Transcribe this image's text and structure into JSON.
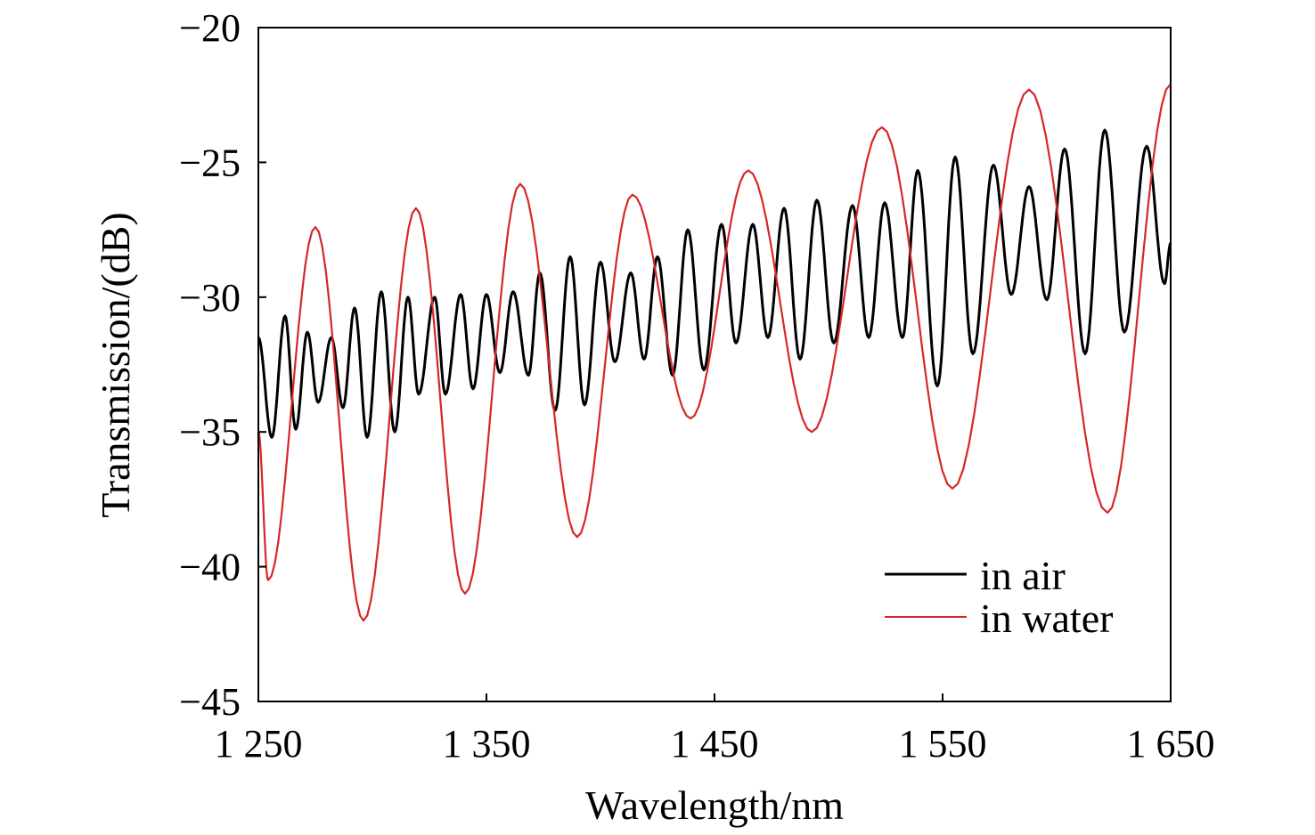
{
  "chart_data": {
    "type": "line",
    "title": "",
    "xlabel": "Wavelength/nm",
    "ylabel": "Transmission/(dB)",
    "xlim": [
      1250,
      1650
    ],
    "ylim": [
      -45,
      -20
    ],
    "xticks": [
      1250,
      1350,
      1450,
      1550,
      1650
    ],
    "xtick_labels": [
      "1 250",
      "1 350",
      "1 450",
      "1 550",
      "1 650"
    ],
    "yticks": [
      -20,
      -25,
      -30,
      -35,
      -40,
      -45
    ],
    "ytick_labels": [
      "−20",
      "−25",
      "−30",
      "−35",
      "−40",
      "−45"
    ],
    "grid": false,
    "legend_position": "bottom-right",
    "series": [
      {
        "name": "in air",
        "color": "#000000",
        "x": [
          1250,
          1255.9,
          1261.7,
          1266.4,
          1271.5,
          1276.2,
          1282,
          1287.1,
          1292.2,
          1297.7,
          1303.9,
          1309.8,
          1315.6,
          1320.3,
          1327.3,
          1332,
          1338.7,
          1344.1,
          1350,
          1355.9,
          1361.7,
          1368.4,
          1373.4,
          1380.1,
          1386.7,
          1393,
          1400,
          1406.3,
          1413.3,
          1419.1,
          1425,
          1431.6,
          1438.3,
          1445.3,
          1453.1,
          1459.4,
          1466.8,
          1473.4,
          1480.5,
          1487.5,
          1494.9,
          1502.3,
          1510.5,
          1517.6,
          1524.6,
          1532.4,
          1539.1,
          1547.7,
          1555.5,
          1563.3,
          1572.3,
          1580.1,
          1587.9,
          1595.7,
          1603.5,
          1612.5,
          1621.1,
          1629.7,
          1639.5,
          1647.3,
          1650
        ],
        "y": [
          -31.5,
          -35.2,
          -30.7,
          -34.9,
          -31.3,
          -33.9,
          -31.5,
          -34.1,
          -30.4,
          -35.2,
          -29.8,
          -35.0,
          -30.0,
          -33.6,
          -30.0,
          -33.6,
          -29.9,
          -33.4,
          -29.9,
          -32.8,
          -29.8,
          -32.9,
          -29.1,
          -34.2,
          -28.5,
          -34.0,
          -28.7,
          -32.4,
          -29.1,
          -32.3,
          -28.5,
          -32.9,
          -27.5,
          -32.7,
          -27.3,
          -31.7,
          -27.3,
          -31.5,
          -26.7,
          -32.3,
          -26.4,
          -31.7,
          -26.6,
          -31.5,
          -26.5,
          -31.5,
          -25.3,
          -33.3,
          -24.8,
          -32.1,
          -25.1,
          -29.9,
          -25.9,
          -30.1,
          -24.5,
          -32.1,
          -23.8,
          -31.3,
          -24.4,
          -29.5,
          -28
        ]
      },
      {
        "name": "in water",
        "color": "#d62728",
        "x": [
          1250,
          1254.3,
          1275,
          1296.1,
          1319.1,
          1340.6,
          1364.8,
          1389.8,
          1414,
          1439.5,
          1464.8,
          1492.6,
          1523.4,
          1554.3,
          1587.9,
          1622.3,
          1650
        ],
        "y": [
          -35,
          -40.5,
          -27.4,
          -42,
          -26.7,
          -41,
          -25.8,
          -38.9,
          -26.2,
          -34.5,
          -25.3,
          -35,
          -23.7,
          -37.1,
          -22.3,
          -38,
          -22.1
        ]
      }
    ]
  }
}
